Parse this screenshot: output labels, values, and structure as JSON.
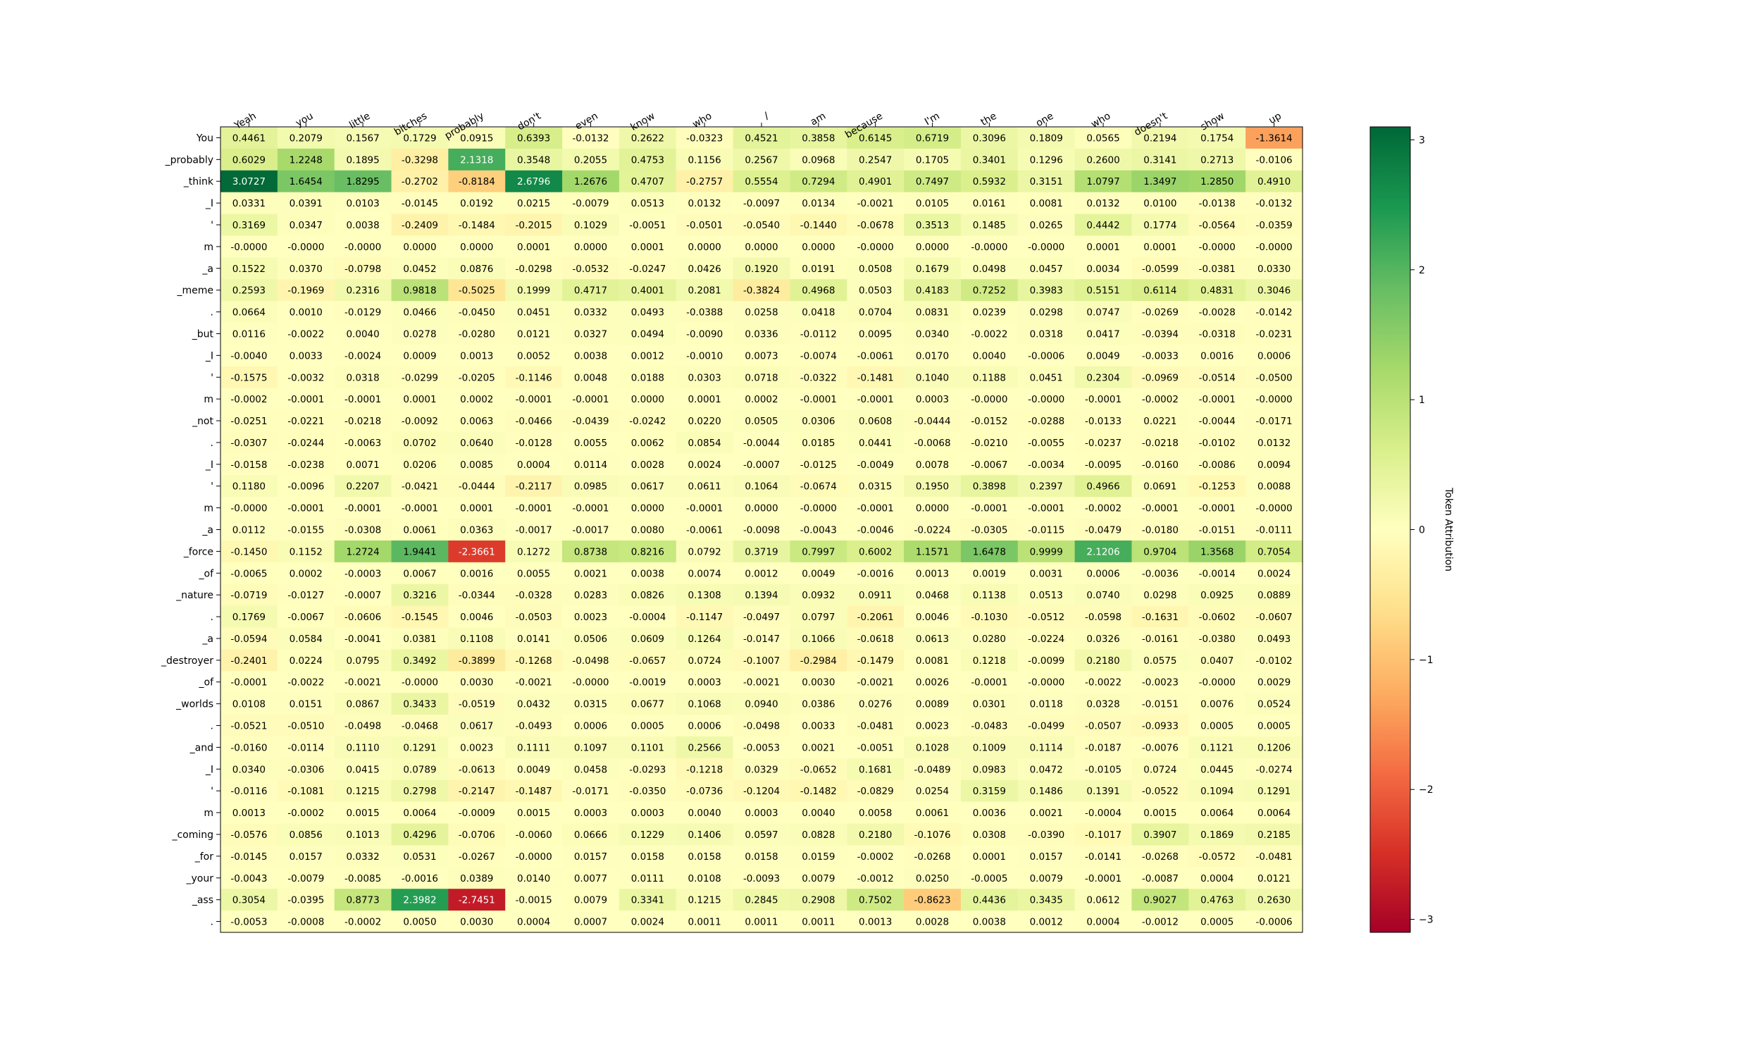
{
  "chart_data": {
    "type": "heatmap",
    "x_tokens": [
      "Yeah",
      "you",
      "little",
      "bitches",
      "probably",
      "don't",
      "even",
      "know",
      "who",
      "/",
      "am",
      "because",
      "I'm",
      "the",
      "one",
      "who",
      "doesn't",
      "show",
      "up"
    ],
    "y_tokens": [
      "You",
      "_probably",
      "_think",
      "_I",
      "'",
      "m",
      "_a",
      "_meme",
      ".",
      "_but",
      "_I",
      "'",
      "m",
      "_not",
      ".",
      "_I",
      "'",
      "m",
      "_a",
      "_force",
      "_of",
      "_nature",
      ".",
      "_a",
      "_destroyer",
      "_of",
      "_worlds",
      ".",
      "_and",
      "_I",
      "'",
      "m",
      "_coming",
      "_for",
      "_your",
      "_ass",
      "."
    ],
    "values": [
      [
        "0.4461",
        "0.2079",
        "0.1567",
        "0.1729",
        "0.0915",
        "0.6393",
        "-0.0132",
        "0.2622",
        "-0.0323",
        "0.4521",
        "0.3858",
        "0.6145",
        "0.6719",
        "0.3096",
        "0.1809",
        "0.0565",
        "0.2194",
        "0.1754",
        "-1.3614"
      ],
      [
        "0.6029",
        "1.2248",
        "0.1895",
        "-0.3298",
        "2.1318",
        "0.3548",
        "0.2055",
        "0.4753",
        "0.1156",
        "0.2567",
        "0.0968",
        "0.2547",
        "0.1705",
        "0.3401",
        "0.1296",
        "0.2600",
        "0.3141",
        "0.2713",
        "-0.0106"
      ],
      [
        "3.0727",
        "1.6454",
        "1.8295",
        "-0.2702",
        "-0.8184",
        "2.6796",
        "1.2676",
        "0.4707",
        "-0.2757",
        "0.5554",
        "0.7294",
        "0.4901",
        "0.7497",
        "0.5932",
        "0.3151",
        "1.0797",
        "1.3497",
        "1.2850",
        "0.4910"
      ],
      [
        "0.0331",
        "0.0391",
        "0.0103",
        "-0.0145",
        "0.0192",
        "0.0215",
        "-0.0079",
        "0.0513",
        "0.0132",
        "-0.0097",
        "0.0134",
        "-0.0021",
        "0.0105",
        "0.0161",
        "0.0081",
        "0.0132",
        "0.0100",
        "-0.0138",
        "-0.0132"
      ],
      [
        "0.3169",
        "0.0347",
        "0.0038",
        "-0.2409",
        "-0.1484",
        "-0.2015",
        "0.1029",
        "-0.0051",
        "-0.0501",
        "-0.0540",
        "-0.1440",
        "-0.0678",
        "0.3513",
        "0.1485",
        "0.0265",
        "0.4442",
        "0.1774",
        "-0.0564",
        "-0.0359"
      ],
      [
        "-0.0000",
        "-0.0000",
        "-0.0000",
        "0.0000",
        "0.0000",
        "0.0001",
        "0.0000",
        "0.0001",
        "0.0000",
        "0.0000",
        "0.0000",
        "-0.0000",
        "0.0000",
        "-0.0000",
        "-0.0000",
        "0.0001",
        "0.0001",
        "-0.0000",
        "-0.0000"
      ],
      [
        "0.1522",
        "0.0370",
        "-0.0798",
        "0.0452",
        "0.0876",
        "-0.0298",
        "-0.0532",
        "-0.0247",
        "0.0426",
        "0.1920",
        "0.0191",
        "0.0508",
        "0.1679",
        "0.0498",
        "0.0457",
        "0.0034",
        "-0.0599",
        "-0.0381",
        "0.0330"
      ],
      [
        "0.2593",
        "-0.1969",
        "0.2316",
        "0.9818",
        "-0.5025",
        "0.1999",
        "0.4717",
        "0.4001",
        "0.2081",
        "-0.3824",
        "0.4968",
        "0.0503",
        "0.4183",
        "0.7252",
        "0.3983",
        "0.5151",
        "0.6114",
        "0.4831",
        "0.3046"
      ],
      [
        "0.0664",
        "0.0010",
        "-0.0129",
        "0.0466",
        "-0.0450",
        "0.0451",
        "0.0332",
        "0.0493",
        "-0.0388",
        "0.0258",
        "0.0418",
        "0.0704",
        "0.0831",
        "0.0239",
        "0.0298",
        "0.0747",
        "-0.0269",
        "-0.0028",
        "-0.0142"
      ],
      [
        "0.0116",
        "-0.0022",
        "0.0040",
        "0.0278",
        "-0.0280",
        "0.0121",
        "0.0327",
        "0.0494",
        "-0.0090",
        "0.0336",
        "-0.0112",
        "0.0095",
        "0.0340",
        "-0.0022",
        "0.0318",
        "0.0417",
        "-0.0394",
        "-0.0318",
        "-0.0231"
      ],
      [
        "-0.0040",
        "0.0033",
        "-0.0024",
        "0.0009",
        "0.0013",
        "0.0052",
        "0.0038",
        "0.0012",
        "-0.0010",
        "0.0073",
        "-0.0074",
        "-0.0061",
        "0.0170",
        "0.0040",
        "-0.0006",
        "0.0049",
        "-0.0033",
        "0.0016",
        "0.0006"
      ],
      [
        "-0.1575",
        "-0.0032",
        "0.0318",
        "-0.0299",
        "-0.0205",
        "-0.1146",
        "0.0048",
        "0.0188",
        "0.0303",
        "0.0718",
        "-0.0322",
        "-0.1481",
        "0.1040",
        "0.1188",
        "0.0451",
        "0.2304",
        "-0.0969",
        "-0.0514",
        "-0.0500"
      ],
      [
        "-0.0002",
        "-0.0001",
        "-0.0001",
        "0.0001",
        "0.0002",
        "-0.0001",
        "-0.0001",
        "0.0000",
        "0.0001",
        "0.0002",
        "-0.0001",
        "-0.0001",
        "0.0003",
        "-0.0000",
        "-0.0000",
        "-0.0001",
        "-0.0002",
        "-0.0001",
        "-0.0000"
      ],
      [
        "-0.0251",
        "-0.0221",
        "-0.0218",
        "-0.0092",
        "0.0063",
        "-0.0466",
        "-0.0439",
        "-0.0242",
        "0.0220",
        "0.0505",
        "0.0306",
        "0.0608",
        "-0.0444",
        "-0.0152",
        "-0.0288",
        "-0.0133",
        "0.0221",
        "-0.0044",
        "-0.0171"
      ],
      [
        "-0.0307",
        "-0.0244",
        "-0.0063",
        "0.0702",
        "0.0640",
        "-0.0128",
        "0.0055",
        "0.0062",
        "0.0854",
        "-0.0044",
        "0.0185",
        "0.0441",
        "-0.0068",
        "-0.0210",
        "-0.0055",
        "-0.0237",
        "-0.0218",
        "-0.0102",
        "0.0132"
      ],
      [
        "-0.0158",
        "-0.0238",
        "0.0071",
        "0.0206",
        "0.0085",
        "0.0004",
        "0.0114",
        "0.0028",
        "0.0024",
        "-0.0007",
        "-0.0125",
        "-0.0049",
        "0.0078",
        "-0.0067",
        "-0.0034",
        "-0.0095",
        "-0.0160",
        "-0.0086",
        "0.0094"
      ],
      [
        "0.1180",
        "-0.0096",
        "0.2207",
        "-0.0421",
        "-0.0444",
        "-0.2117",
        "0.0985",
        "0.0617",
        "0.0611",
        "0.1064",
        "-0.0674",
        "0.0315",
        "0.1950",
        "0.3898",
        "0.2397",
        "0.4966",
        "0.0691",
        "-0.1253",
        "0.0088"
      ],
      [
        "-0.0000",
        "-0.0001",
        "-0.0001",
        "-0.0001",
        "0.0001",
        "-0.0001",
        "-0.0001",
        "0.0000",
        "-0.0001",
        "0.0000",
        "-0.0000",
        "-0.0001",
        "0.0000",
        "-0.0001",
        "-0.0001",
        "-0.0002",
        "-0.0001",
        "-0.0001",
        "-0.0000"
      ],
      [
        "0.0112",
        "-0.0155",
        "-0.0308",
        "0.0061",
        "0.0363",
        "-0.0017",
        "-0.0017",
        "0.0080",
        "-0.0061",
        "-0.0098",
        "-0.0043",
        "-0.0046",
        "-0.0224",
        "-0.0305",
        "-0.0115",
        "-0.0479",
        "-0.0180",
        "-0.0151",
        "-0.0111"
      ],
      [
        "-0.1450",
        "0.1152",
        "1.2724",
        "1.9441",
        "-2.3661",
        "0.1272",
        "0.8738",
        "0.8216",
        "0.0792",
        "0.3719",
        "0.7997",
        "0.6002",
        "1.1571",
        "1.6478",
        "0.9999",
        "2.1206",
        "0.9704",
        "1.3568",
        "0.7054"
      ],
      [
        "-0.0065",
        "0.0002",
        "-0.0003",
        "0.0067",
        "0.0016",
        "0.0055",
        "0.0021",
        "0.0038",
        "0.0074",
        "0.0012",
        "0.0049",
        "-0.0016",
        "0.0013",
        "0.0019",
        "0.0031",
        "0.0006",
        "-0.0036",
        "-0.0014",
        "0.0024"
      ],
      [
        "-0.0719",
        "-0.0127",
        "-0.0007",
        "0.3216",
        "-0.0344",
        "-0.0328",
        "0.0283",
        "0.0826",
        "0.1308",
        "0.1394",
        "0.0932",
        "0.0911",
        "0.0468",
        "0.1138",
        "0.0513",
        "0.0740",
        "0.0298",
        "0.0925",
        "0.0889"
      ],
      [
        "0.1769",
        "-0.0067",
        "-0.0606",
        "-0.1545",
        "0.0046",
        "-0.0503",
        "0.0023",
        "-0.0004",
        "-0.1147",
        "-0.0497",
        "0.0797",
        "-0.2061",
        "0.0046",
        "-0.1030",
        "-0.0512",
        "-0.0598",
        "-0.1631",
        "-0.0602",
        "-0.0607"
      ],
      [
        "-0.0594",
        "0.0584",
        "-0.0041",
        "0.0381",
        "0.1108",
        "0.0141",
        "0.0506",
        "0.0609",
        "0.1264",
        "-0.0147",
        "0.1066",
        "-0.0618",
        "0.0613",
        "0.0280",
        "-0.0224",
        "0.0326",
        "-0.0161",
        "-0.0380",
        "0.0493"
      ],
      [
        "-0.2401",
        "0.0224",
        "0.0795",
        "0.3492",
        "-0.3899",
        "-0.1268",
        "-0.0498",
        "-0.0657",
        "0.0724",
        "-0.1007",
        "-0.2984",
        "-0.1479",
        "0.0081",
        "0.1218",
        "-0.0099",
        "0.2180",
        "0.0575",
        "0.0407",
        "-0.0102"
      ],
      [
        "-0.0001",
        "-0.0022",
        "-0.0021",
        "-0.0000",
        "0.0030",
        "-0.0021",
        "-0.0000",
        "-0.0019",
        "0.0003",
        "-0.0021",
        "0.0030",
        "-0.0021",
        "0.0026",
        "-0.0001",
        "-0.0000",
        "-0.0022",
        "-0.0023",
        "-0.0000",
        "0.0029"
      ],
      [
        "0.0108",
        "0.0151",
        "0.0867",
        "0.3433",
        "-0.0519",
        "0.0432",
        "0.0315",
        "0.0677",
        "0.1068",
        "0.0940",
        "0.0386",
        "0.0276",
        "0.0089",
        "0.0301",
        "0.0118",
        "0.0328",
        "-0.0151",
        "0.0076",
        "0.0524"
      ],
      [
        "-0.0521",
        "-0.0510",
        "-0.0498",
        "-0.0468",
        "0.0617",
        "-0.0493",
        "0.0006",
        "0.0005",
        "0.0006",
        "-0.0498",
        "0.0033",
        "-0.0481",
        "0.0023",
        "-0.0483",
        "-0.0499",
        "-0.0507",
        "-0.0933",
        "0.0005",
        "0.0005"
      ],
      [
        "-0.0160",
        "-0.0114",
        "0.1110",
        "0.1291",
        "0.0023",
        "0.1111",
        "0.1097",
        "0.1101",
        "0.2566",
        "-0.0053",
        "0.0021",
        "-0.0051",
        "0.1028",
        "0.1009",
        "0.1114",
        "-0.0187",
        "-0.0076",
        "0.1121",
        "0.1206"
      ],
      [
        "0.0340",
        "-0.0306",
        "0.0415",
        "0.0789",
        "-0.0613",
        "0.0049",
        "0.0458",
        "-0.0293",
        "-0.1218",
        "0.0329",
        "-0.0652",
        "0.1681",
        "-0.0489",
        "0.0983",
        "0.0472",
        "-0.0105",
        "0.0724",
        "0.0445",
        "-0.0274"
      ],
      [
        "-0.0116",
        "-0.1081",
        "0.1215",
        "0.2798",
        "-0.2147",
        "-0.1487",
        "-0.0171",
        "-0.0350",
        "-0.0736",
        "-0.1204",
        "-0.1482",
        "-0.0829",
        "0.0254",
        "0.3159",
        "0.1486",
        "0.1391",
        "-0.0522",
        "0.1094",
        "0.1291"
      ],
      [
        "0.0013",
        "-0.0002",
        "0.0015",
        "0.0064",
        "-0.0009",
        "0.0015",
        "0.0003",
        "0.0003",
        "0.0040",
        "0.0003",
        "0.0040",
        "0.0058",
        "0.0061",
        "0.0036",
        "0.0021",
        "-0.0004",
        "0.0015",
        "0.0064",
        "0.0064"
      ],
      [
        "-0.0576",
        "0.0856",
        "0.1013",
        "0.4296",
        "-0.0706",
        "-0.0060",
        "0.0666",
        "0.1229",
        "0.1406",
        "0.0597",
        "0.0828",
        "0.2180",
        "-0.1076",
        "0.0308",
        "-0.0390",
        "-0.1017",
        "0.3907",
        "0.1869",
        "0.2185"
      ],
      [
        "-0.0145",
        "0.0157",
        "0.0332",
        "0.0531",
        "-0.0267",
        "-0.0000",
        "0.0157",
        "0.0158",
        "0.0158",
        "0.0158",
        "0.0159",
        "-0.0002",
        "-0.0268",
        "0.0001",
        "0.0157",
        "-0.0141",
        "-0.0268",
        "-0.0572",
        "-0.0481"
      ],
      [
        "-0.0043",
        "-0.0079",
        "-0.0085",
        "-0.0016",
        "0.0389",
        "0.0140",
        "0.0077",
        "0.0111",
        "0.0108",
        "-0.0093",
        "0.0079",
        "-0.0012",
        "0.0250",
        "-0.0005",
        "0.0079",
        "-0.0001",
        "-0.0087",
        "0.0004",
        "0.0121"
      ],
      [
        "0.3054",
        "-0.0395",
        "0.8773",
        "2.3982",
        "-2.7451",
        "-0.0015",
        "0.0079",
        "0.3341",
        "0.1215",
        "0.2845",
        "0.2908",
        "0.7502",
        "-0.8623",
        "0.4436",
        "0.3435",
        "0.0612",
        "0.9027",
        "0.4763",
        "0.2630"
      ],
      [
        "-0.0053",
        "-0.0008",
        "-0.0002",
        "0.0050",
        "0.0030",
        "0.0004",
        "0.0007",
        "0.0024",
        "0.0011",
        "0.0011",
        "0.0011",
        "0.0013",
        "0.0028",
        "0.0038",
        "0.0012",
        "0.0004",
        "-0.0012",
        "0.0005",
        "-0.0006"
      ]
    ],
    "vmin": -3.1,
    "vmax": 3.1,
    "colormap": "RdYlGn",
    "colorbar": {
      "label": "Token Attribution",
      "ticks": [
        3,
        2,
        1,
        0,
        -1,
        -2,
        -3
      ],
      "tick_labels": [
        "3",
        "2",
        "1",
        "0",
        "−1",
        "−2",
        "−3"
      ]
    },
    "grid": false,
    "legend": "none"
  }
}
